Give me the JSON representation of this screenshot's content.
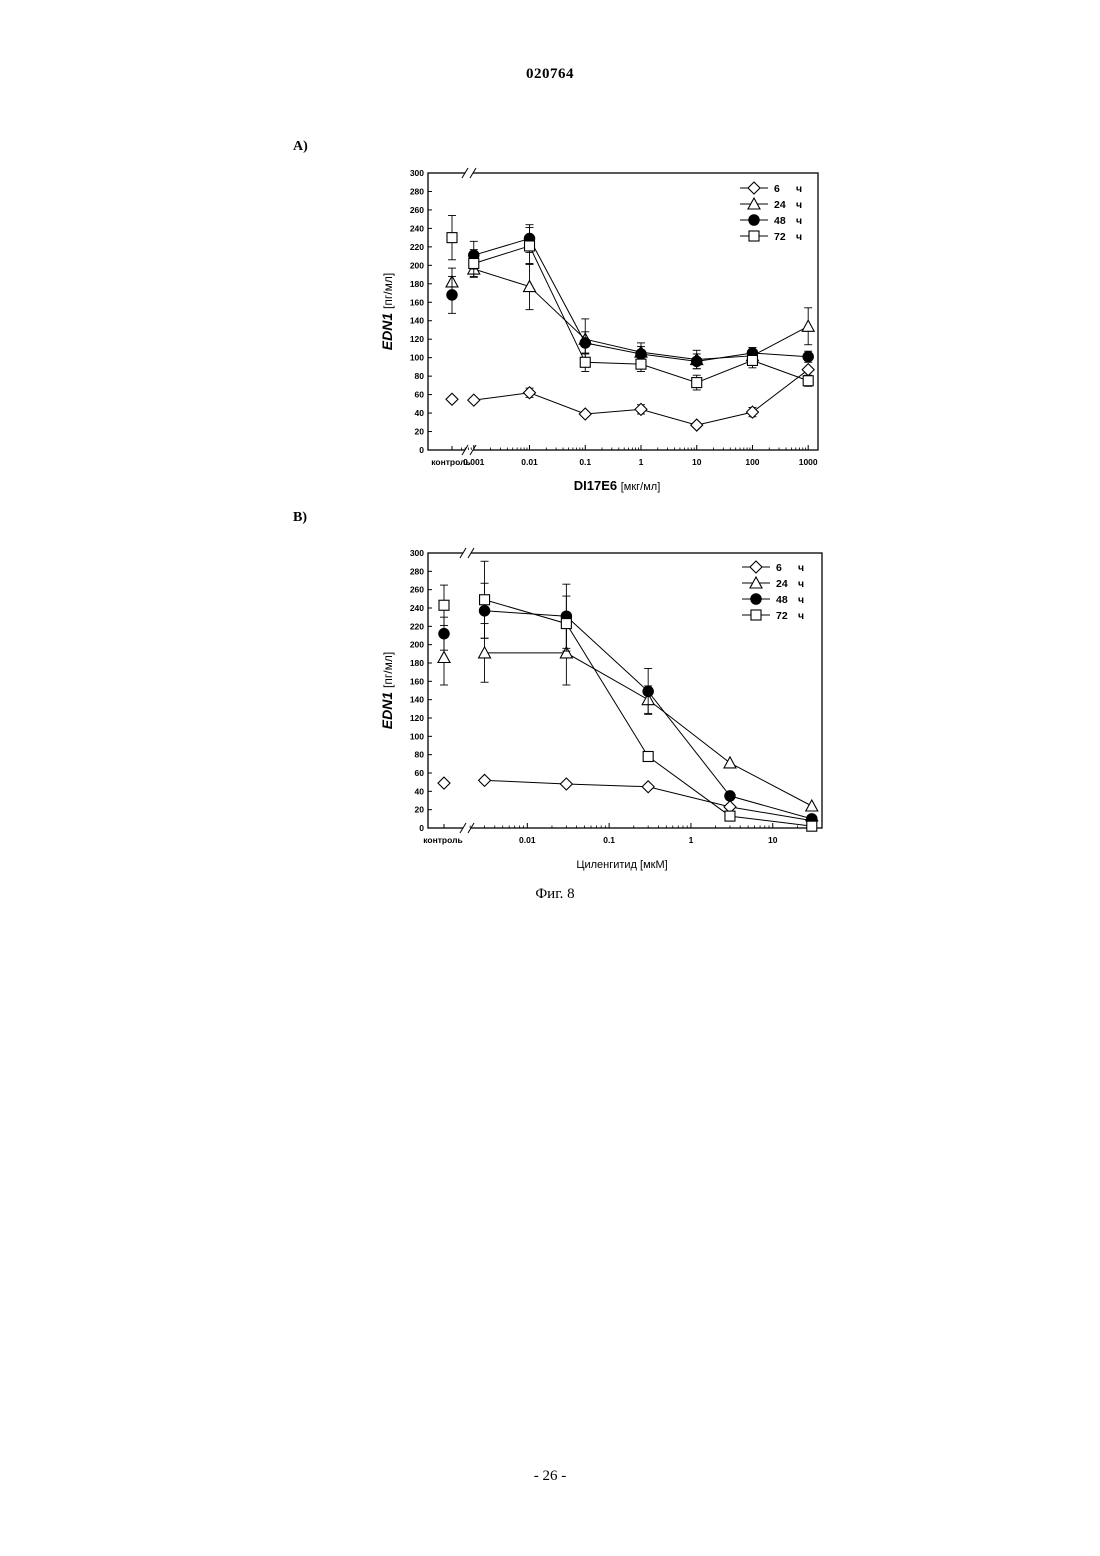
{
  "document": {
    "number": "020764",
    "figure_caption": "Фиг. 8",
    "page_number": "- 26 -"
  },
  "chart_data": [
    {
      "panel": "A)",
      "type": "line",
      "ylabel": {
        "main": "EDN1",
        "unit": "[пг/мл]"
      },
      "xlabel": {
        "main": "DI17E6",
        "unit": "[мкг/мл]"
      },
      "x_scale": "log",
      "xlim": [
        0.0005,
        1500
      ],
      "ylim": [
        0,
        300
      ],
      "yticks": [
        0,
        20,
        40,
        60,
        80,
        100,
        120,
        140,
        160,
        180,
        200,
        220,
        240,
        260,
        280,
        300
      ],
      "yticklabels": [
        "0",
        "20",
        "40",
        "60",
        "80",
        "100",
        "120",
        "140",
        "160",
        "180",
        "200",
        "220",
        "240",
        "260",
        "280",
        "300"
      ],
      "control_label": "контроль",
      "xticks": [
        0.001,
        0.01,
        0.1,
        1,
        10,
        100,
        1000
      ],
      "xticklabels": [
        "0.001",
        "0.01",
        "0.1",
        "1",
        "10",
        "100",
        "1000"
      ],
      "x": [
        0.001,
        0.01,
        0.1,
        1,
        10,
        100,
        1000
      ],
      "legend_position": "top-right",
      "axis_break": true,
      "series": [
        {
          "name": "6",
          "unit": "ч",
          "marker": "diamond",
          "fill": "open",
          "control": 55,
          "control_err": 0,
          "values": [
            54,
            62,
            39,
            44,
            27,
            41,
            87
          ],
          "err": [
            0,
            5,
            0,
            5,
            0,
            5,
            0
          ]
        },
        {
          "name": "24",
          "unit": "ч",
          "marker": "triangle",
          "fill": "open",
          "control": 182,
          "control_err": 15,
          "values": [
            196,
            177,
            120,
            106,
            98,
            102,
            134
          ],
          "err": [
            8,
            25,
            22,
            10,
            10,
            6,
            20
          ]
        },
        {
          "name": "48",
          "unit": "ч",
          "marker": "circle",
          "fill": "filled",
          "control": 168,
          "control_err": 20,
          "values": [
            211,
            229,
            116,
            104,
            96,
            105,
            101
          ],
          "err": [
            15,
            15,
            12,
            8,
            8,
            6,
            6
          ]
        },
        {
          "name": "72",
          "unit": "ч",
          "marker": "square",
          "fill": "open",
          "control": 230,
          "control_err": 24,
          "values": [
            202,
            221,
            95,
            93,
            73,
            97,
            75
          ],
          "err": [
            15,
            20,
            10,
            8,
            8,
            8,
            6
          ]
        }
      ]
    },
    {
      "panel": "B)",
      "type": "line",
      "ylabel": {
        "main": "EDN1",
        "unit": "[пг/мл]"
      },
      "xlabel": {
        "main": "",
        "unit": "Циленгитид [мкМ]"
      },
      "x_scale": "log",
      "xlim": [
        0.0012,
        40
      ],
      "ylim": [
        0,
        300
      ],
      "yticks": [
        0,
        20,
        40,
        60,
        80,
        100,
        120,
        140,
        160,
        180,
        200,
        220,
        240,
        260,
        280,
        300
      ],
      "yticklabels": [
        "0",
        "20",
        "40",
        "60",
        "80",
        "100",
        "120",
        "140",
        "160",
        "180",
        "200",
        "220",
        "240",
        "260",
        "280",
        "300"
      ],
      "control_label": "контроль",
      "xticks": [
        0.01,
        0.1,
        1,
        10
      ],
      "xticklabels": [
        "0.01",
        "0.1",
        "1",
        "10"
      ],
      "x": [
        0.003,
        0.03,
        0.3,
        3,
        30
      ],
      "legend_position": "top-right",
      "axis_break": true,
      "series": [
        {
          "name": "6",
          "unit": "ч",
          "marker": "diamond",
          "fill": "open",
          "control": 49,
          "control_err": 0,
          "values": [
            52,
            48,
            45,
            23,
            8
          ],
          "err": [
            0,
            0,
            0,
            0,
            0
          ]
        },
        {
          "name": "24",
          "unit": "ч",
          "marker": "triangle",
          "fill": "open",
          "control": 186,
          "control_err": 30,
          "values": [
            191,
            191,
            140,
            71,
            24
          ],
          "err": [
            32,
            35,
            15,
            0,
            0
          ]
        },
        {
          "name": "48",
          "unit": "ч",
          "marker": "circle",
          "fill": "filled",
          "control": 212,
          "control_err": 18,
          "values": [
            237,
            231,
            149,
            35,
            10
          ],
          "err": [
            30,
            35,
            25,
            0,
            0
          ]
        },
        {
          "name": "72",
          "unit": "ч",
          "marker": "square",
          "fill": "open",
          "control": 243,
          "control_err": 22,
          "values": [
            249,
            223,
            78,
            13,
            2
          ],
          "err": [
            42,
            30,
            0,
            0,
            0
          ]
        }
      ]
    }
  ]
}
